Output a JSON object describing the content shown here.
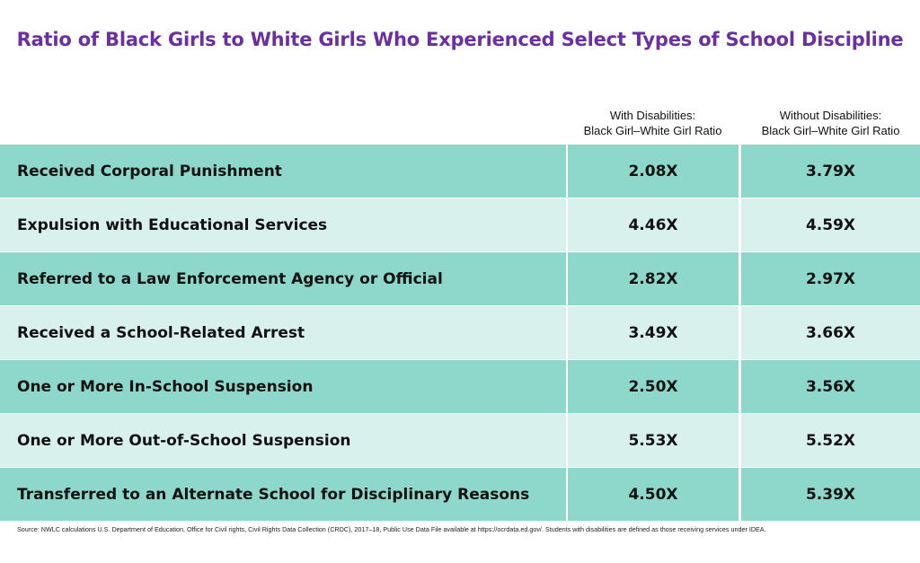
{
  "title": "Ratio of Black Girls to White Girls Who Experienced Select Types of School Discipline",
  "columns": [
    {
      "line1": "With Disabilities:",
      "line2": "Black Girl–White Girl Ratio"
    },
    {
      "line1": "Without Disabilities:",
      "line2": "Black Girl–White Girl Ratio"
    }
  ],
  "chart_data": {
    "type": "table",
    "title": "Ratio of Black Girls to White Girls Who Experienced Select Types of School Discipline",
    "columns": [
      "With Disabilities: Black Girl–White Girl Ratio",
      "Without Disabilities: Black Girl–White Girl Ratio"
    ],
    "rows": [
      {
        "label": "Received Corporal Punishment",
        "with_disabilities": "2.08X",
        "without_disabilities": "3.79X"
      },
      {
        "label": "Expulsion with Educational Services",
        "with_disabilities": "4.46X",
        "without_disabilities": "4.59X"
      },
      {
        "label": "Referred to a Law Enforcement Agency or Official",
        "with_disabilities": "2.82X",
        "without_disabilities": "2.97X"
      },
      {
        "label": "Received a School-Related Arrest",
        "with_disabilities": "3.49X",
        "without_disabilities": "3.66X"
      },
      {
        "label": "One or More In-School Suspension",
        "with_disabilities": "2.50X",
        "without_disabilities": "3.56X"
      },
      {
        "label": "One or More Out-of-School Suspension",
        "with_disabilities": "5.53X",
        "without_disabilities": "5.52X"
      },
      {
        "label": "Transferred to an Alternate School for Disciplinary Reasons",
        "with_disabilities": "4.50X",
        "without_disabilities": "5.39X"
      }
    ]
  },
  "colors": {
    "title": "#6a2fa0",
    "row_dark": "#8dd8cb",
    "row_light": "#d9f1ec"
  },
  "source": "Source: NWLC calculations U.S. Department of Education, Office for Civil rights, Civil Rights Data Collection (CRDC), 2017–18, Public Use Data File available at https://ocrdata.ed.gov/. Students with disabilities are defined as those receiving services under IDEA."
}
